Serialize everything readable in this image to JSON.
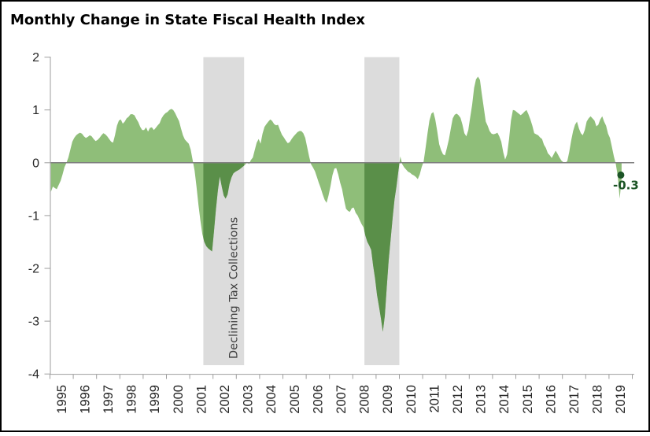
{
  "title": "Monthly Change in State Fiscal Health Index",
  "chart_data": {
    "type": "area",
    "title": "Monthly Change in State Fiscal Health Index",
    "xlabel": "",
    "ylabel": "",
    "start_month": "1995-01",
    "frequency": "monthly",
    "ylim": [
      -4,
      2
    ],
    "yticks": [
      2,
      1,
      0,
      -1,
      -2,
      -3,
      -4
    ],
    "x_tick_years": [
      1995,
      1996,
      1997,
      1998,
      1999,
      2000,
      2001,
      2002,
      2003,
      2004,
      2005,
      2006,
      2007,
      2008,
      2009,
      2010,
      2011,
      2012,
      2013,
      2014,
      2015,
      2016,
      2017,
      2018,
      2019
    ],
    "values": [
      -0.55,
      -0.45,
      -0.48,
      -0.5,
      -0.42,
      -0.34,
      -0.22,
      -0.08,
      0.0,
      0.1,
      0.25,
      0.4,
      0.47,
      0.52,
      0.55,
      0.57,
      0.55,
      0.5,
      0.47,
      0.49,
      0.52,
      0.5,
      0.45,
      0.41,
      0.43,
      0.47,
      0.52,
      0.56,
      0.54,
      0.5,
      0.45,
      0.4,
      0.38,
      0.52,
      0.7,
      0.8,
      0.82,
      0.74,
      0.78,
      0.84,
      0.87,
      0.92,
      0.92,
      0.9,
      0.83,
      0.77,
      0.68,
      0.62,
      0.62,
      0.67,
      0.59,
      0.66,
      0.67,
      0.62,
      0.66,
      0.71,
      0.75,
      0.84,
      0.9,
      0.94,
      0.96,
      1.0,
      1.02,
      1.0,
      0.94,
      0.86,
      0.79,
      0.65,
      0.52,
      0.44,
      0.4,
      0.36,
      0.25,
      0.05,
      -0.15,
      -0.45,
      -0.8,
      -1.1,
      -1.35,
      -1.5,
      -1.58,
      -1.62,
      -1.65,
      -1.68,
      -1.3,
      -0.88,
      -0.52,
      -0.26,
      -0.45,
      -0.62,
      -0.68,
      -0.6,
      -0.4,
      -0.28,
      -0.2,
      -0.17,
      -0.15,
      -0.13,
      -0.1,
      -0.07,
      -0.04,
      0.02,
      -0.03,
      0.05,
      0.1,
      0.24,
      0.38,
      0.45,
      0.36,
      0.55,
      0.68,
      0.73,
      0.78,
      0.82,
      0.79,
      0.73,
      0.71,
      0.72,
      0.62,
      0.53,
      0.48,
      0.42,
      0.37,
      0.39,
      0.45,
      0.5,
      0.54,
      0.58,
      0.6,
      0.6,
      0.56,
      0.47,
      0.3,
      0.12,
      -0.03,
      -0.09,
      -0.16,
      -0.27,
      -0.38,
      -0.48,
      -0.6,
      -0.7,
      -0.76,
      -0.62,
      -0.45,
      -0.24,
      -0.11,
      -0.1,
      -0.22,
      -0.38,
      -0.5,
      -0.7,
      -0.87,
      -0.91,
      -0.93,
      -0.86,
      -0.85,
      -0.95,
      -1.0,
      -1.08,
      -1.16,
      -1.22,
      -1.38,
      -1.5,
      -1.57,
      -1.65,
      -1.95,
      -2.2,
      -2.5,
      -2.72,
      -2.95,
      -3.2,
      -2.9,
      -2.35,
      -1.85,
      -1.45,
      -1.05,
      -0.7,
      -0.45,
      -0.15,
      0.12,
      -0.03,
      -0.09,
      -0.13,
      -0.17,
      -0.19,
      -0.22,
      -0.24,
      -0.27,
      -0.31,
      -0.22,
      -0.08,
      0.02,
      0.28,
      0.56,
      0.8,
      0.93,
      0.96,
      0.82,
      0.6,
      0.35,
      0.24,
      0.16,
      0.14,
      0.28,
      0.44,
      0.65,
      0.84,
      0.91,
      0.93,
      0.9,
      0.85,
      0.72,
      0.56,
      0.5,
      0.62,
      0.86,
      1.1,
      1.42,
      1.58,
      1.63,
      1.57,
      1.3,
      1.04,
      0.78,
      0.7,
      0.6,
      0.55,
      0.54,
      0.55,
      0.57,
      0.5,
      0.4,
      0.2,
      0.06,
      0.16,
      0.45,
      0.8,
      1.0,
      0.99,
      0.96,
      0.93,
      0.9,
      0.93,
      0.97,
      1.0,
      0.92,
      0.82,
      0.7,
      0.56,
      0.54,
      0.52,
      0.48,
      0.45,
      0.34,
      0.28,
      0.18,
      0.14,
      0.09,
      0.16,
      0.23,
      0.17,
      0.1,
      0.04,
      0.01,
      0.0,
      0.03,
      0.2,
      0.42,
      0.6,
      0.72,
      0.78,
      0.65,
      0.56,
      0.52,
      0.62,
      0.78,
      0.84,
      0.88,
      0.84,
      0.8,
      0.69,
      0.72,
      0.82,
      0.88,
      0.78,
      0.7,
      0.55,
      0.47,
      0.3,
      0.12,
      -0.02,
      -0.25,
      -0.68,
      -0.3
    ],
    "bands": [
      {
        "from": "2001-08",
        "to": "2003-04",
        "label": "Declining Tax Collections"
      },
      {
        "from": "2008-07",
        "to": "2009-12",
        "label": ""
      }
    ],
    "last_point": {
      "value": -0.3,
      "label": "-0.3"
    },
    "legend": "none",
    "grid": "off",
    "colors": {
      "area": "#8FBE79",
      "area_in_band": "#5A8F49",
      "band": "#DCDCDC",
      "zero_line": "#7F7F7F",
      "axis": "#9E9E9E",
      "tick_text": "#262626",
      "band_text": "#404040",
      "dot": "#1C5426",
      "title": "#000000"
    }
  }
}
